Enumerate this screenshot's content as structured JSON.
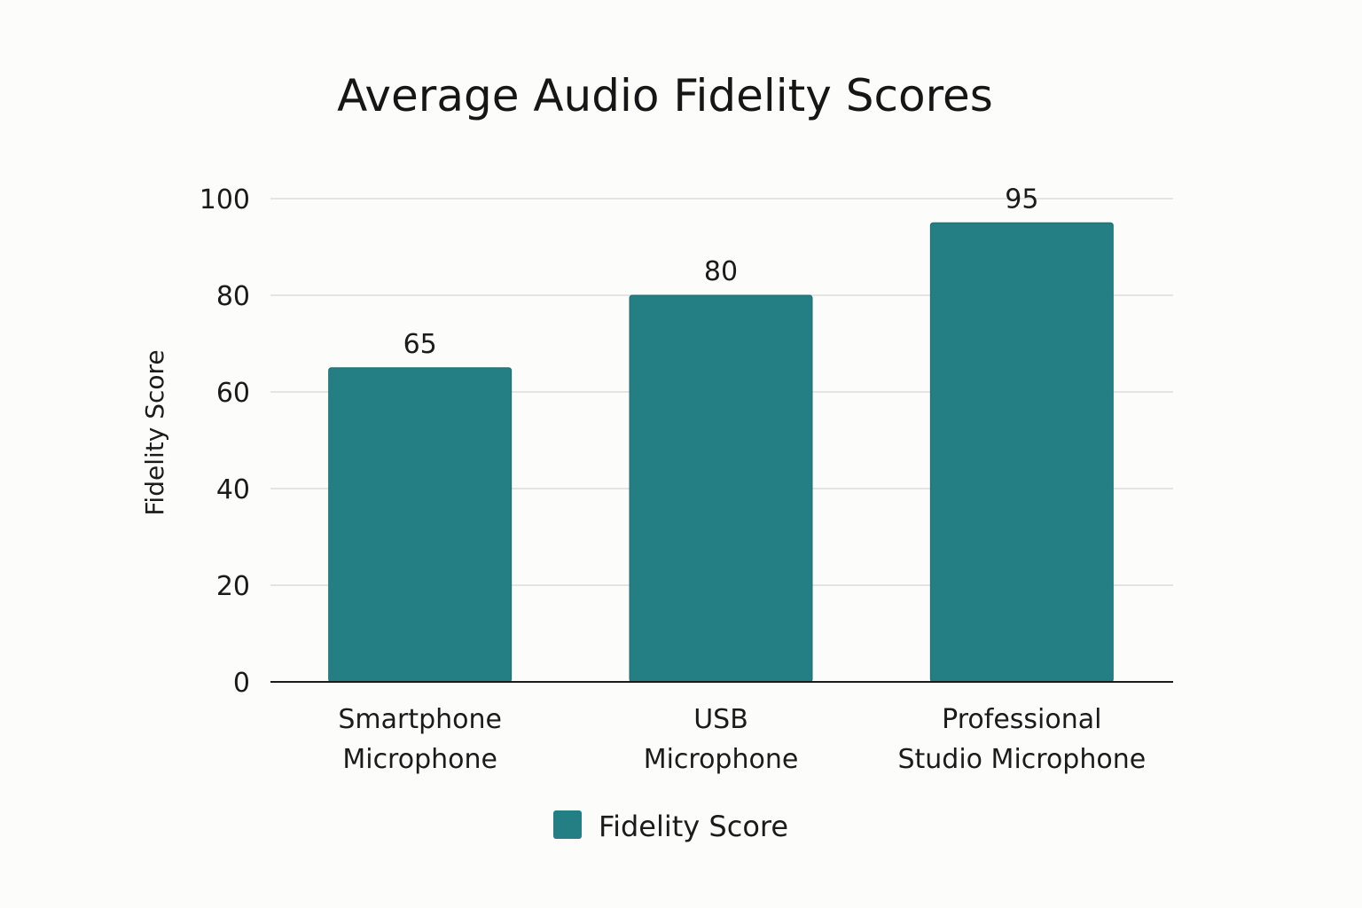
{
  "chart_data": {
    "type": "bar",
    "title": "Average Audio Fidelity Scores",
    "xlabel": "",
    "ylabel": "Fidelity Score",
    "categories": [
      [
        "Smartphone",
        "Microphone"
      ],
      [
        "USB",
        "Microphone"
      ],
      [
        "Professional",
        "Studio Microphone"
      ]
    ],
    "series": [
      {
        "name": "Fidelity Score",
        "values": [
          65,
          80,
          95
        ],
        "color": "#237f83"
      }
    ],
    "ylim": [
      0,
      100
    ],
    "yticks": [
      0,
      20,
      40,
      60,
      80,
      100
    ],
    "grid": true,
    "legend_position": "bottom-center"
  }
}
